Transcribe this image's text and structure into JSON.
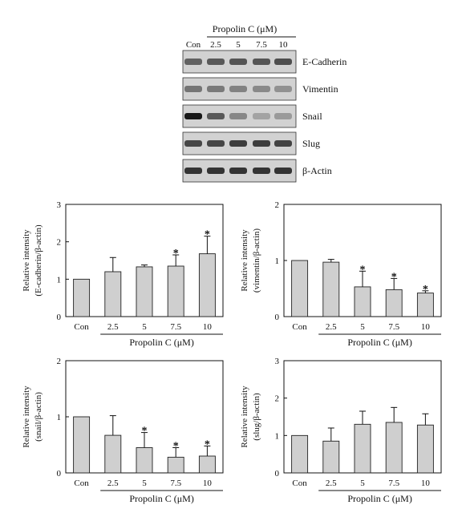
{
  "blot": {
    "header_title": "Propolin C (μM)",
    "lanes": [
      "Con",
      "2.5",
      "5",
      "7.5",
      "10"
    ],
    "proteins": [
      {
        "name": "E-Cadherin",
        "intensity": [
          0.55,
          0.6,
          0.62,
          0.62,
          0.66
        ]
      },
      {
        "name": "Vimentin",
        "intensity": [
          0.45,
          0.42,
          0.38,
          0.34,
          0.3
        ]
      },
      {
        "name": "Snail",
        "intensity": [
          0.95,
          0.6,
          0.35,
          0.2,
          0.25
        ]
      },
      {
        "name": "Slug",
        "intensity": [
          0.7,
          0.7,
          0.75,
          0.75,
          0.72
        ]
      },
      {
        "name": "β-Actin",
        "intensity": [
          0.8,
          0.8,
          0.8,
          0.8,
          0.8
        ]
      }
    ]
  },
  "chart_data": [
    {
      "type": "bar",
      "ylabel_line1": "Relative intensity",
      "ylabel_line2": "(E-cadherin/β-actin)",
      "xlabel": "Propolin C (μM)",
      "categories": [
        "Con",
        "2.5",
        "5",
        "7.5",
        "10"
      ],
      "values": [
        1.0,
        1.2,
        1.33,
        1.35,
        1.68
      ],
      "errors": [
        0,
        0.38,
        0.05,
        0.3,
        0.47
      ],
      "significant": [
        false,
        false,
        false,
        true,
        true
      ],
      "ylim": [
        0,
        3
      ],
      "yticks": [
        "0",
        "1",
        "2",
        "3"
      ]
    },
    {
      "type": "bar",
      "ylabel_line1": "Relative intensity",
      "ylabel_line2": "(vimentin/β-actin)",
      "xlabel": "Propolin C (μM)",
      "categories": [
        "Con",
        "2.5",
        "5",
        "7.5",
        "10"
      ],
      "values": [
        1.0,
        0.97,
        0.53,
        0.48,
        0.42
      ],
      "errors": [
        0,
        0.05,
        0.28,
        0.2,
        0.04
      ],
      "significant": [
        false,
        false,
        true,
        true,
        true
      ],
      "ylim": [
        0,
        2
      ],
      "yticks": [
        "0",
        "1",
        "2"
      ]
    },
    {
      "type": "bar",
      "ylabel_line1": "Relative intensity",
      "ylabel_line2": "(snail/β-actin)",
      "xlabel": "Propolin C (μM)",
      "categories": [
        "Con",
        "2.5",
        "5",
        "7.5",
        "10"
      ],
      "values": [
        1.0,
        0.67,
        0.45,
        0.28,
        0.3
      ],
      "errors": [
        0,
        0.35,
        0.27,
        0.17,
        0.18
      ],
      "significant": [
        false,
        false,
        true,
        true,
        true
      ],
      "ylim": [
        0,
        2
      ],
      "yticks": [
        "0",
        "1",
        "2"
      ]
    },
    {
      "type": "bar",
      "ylabel_line1": "Relative intensity",
      "ylabel_line2": "(slug/β-actin)",
      "xlabel": "Propolin C (μM)",
      "categories": [
        "Con",
        "2.5",
        "5",
        "7.5",
        "10"
      ],
      "values": [
        1.0,
        0.85,
        1.3,
        1.35,
        1.28
      ],
      "errors": [
        0,
        0.35,
        0.35,
        0.4,
        0.3
      ],
      "significant": [
        false,
        false,
        false,
        false,
        false
      ],
      "ylim": [
        0,
        3
      ],
      "yticks": [
        "0",
        "1",
        "2",
        "3"
      ]
    }
  ],
  "significance_marker": "*"
}
